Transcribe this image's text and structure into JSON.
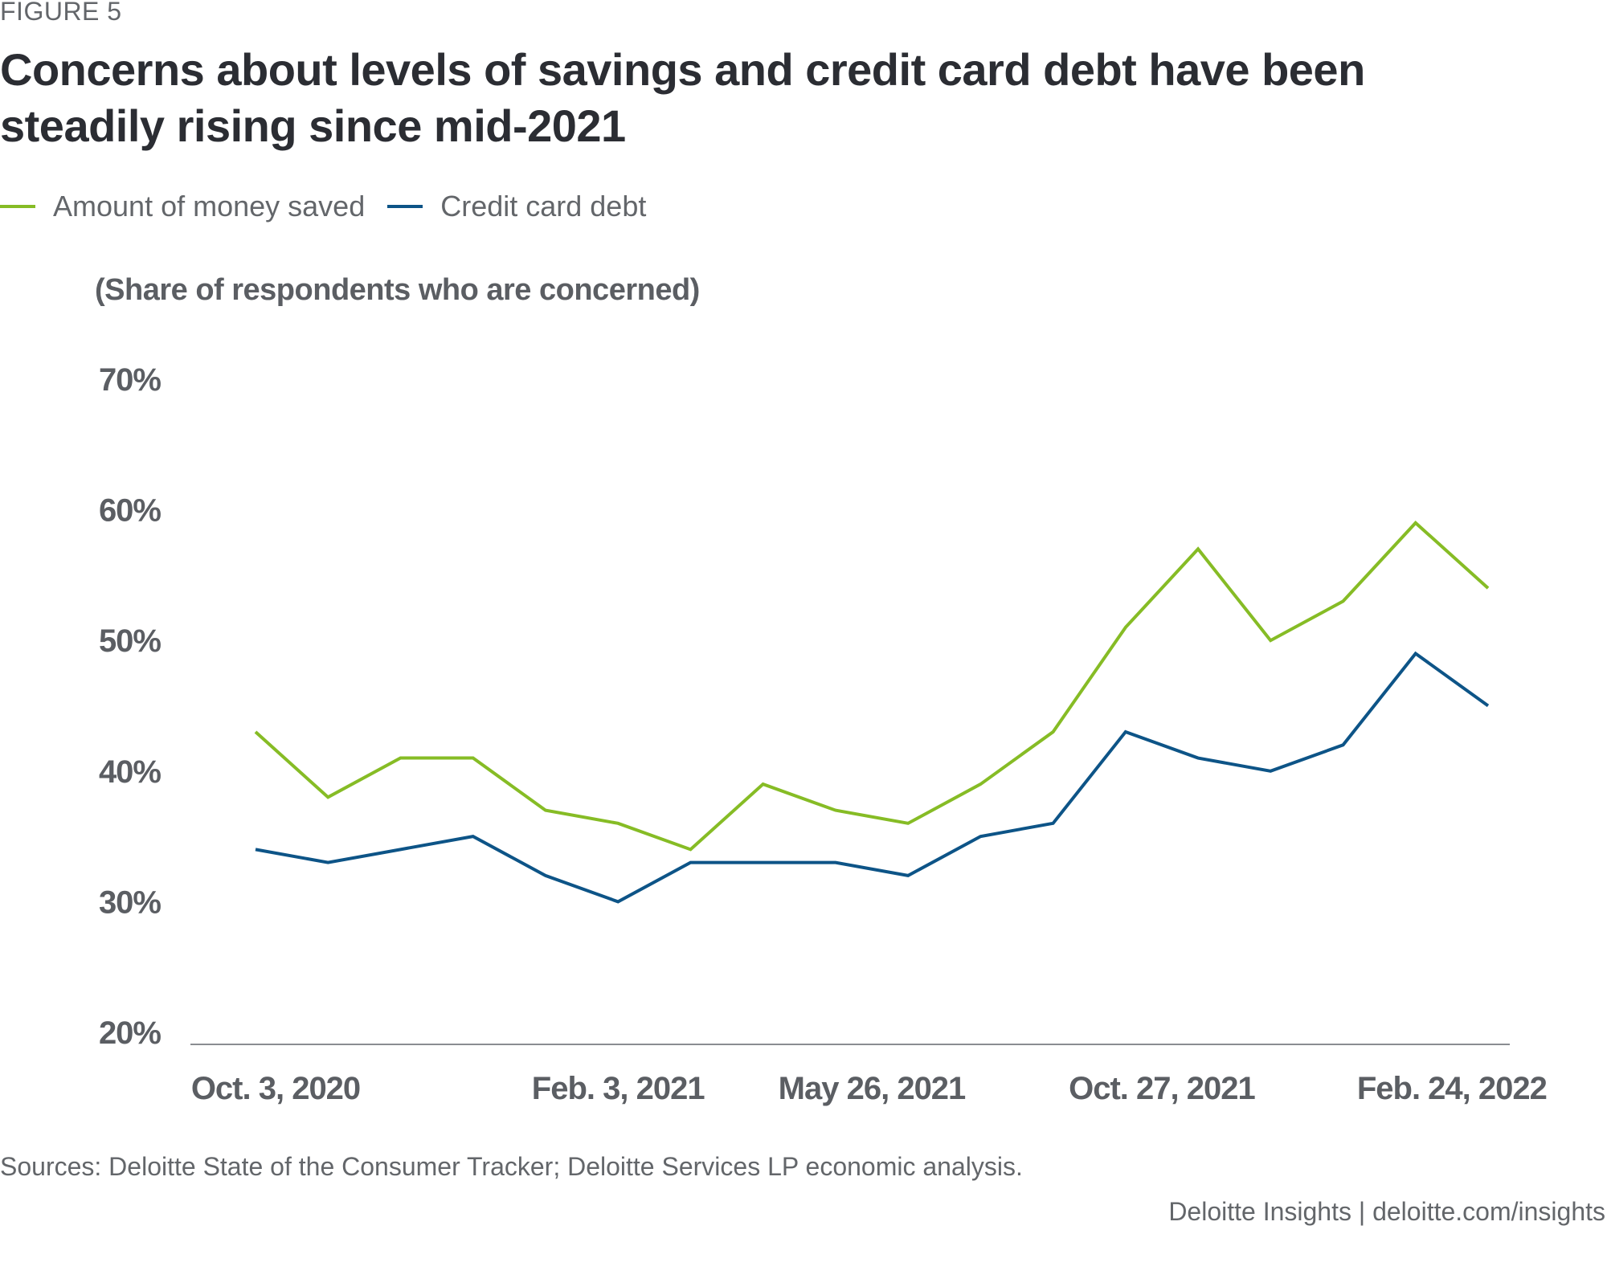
{
  "figure_label": "FIGURE 5",
  "title": "Concerns about levels of savings and credit card debt have been steadily rising since mid-2021",
  "legend": [
    {
      "name": "Amount of money saved",
      "color": "#86bc25"
    },
    {
      "name": "Credit card debt",
      "color": "#0d5487"
    }
  ],
  "source": "Sources: Deloitte State of the Consumer Tracker; Deloitte Services LP economic analysis.",
  "credit": "Deloitte Insights | deloitte.com/insights",
  "chart_data": {
    "type": "line",
    "title": "Concerns about levels of savings and credit card debt have been steadily rising since mid-2021",
    "ylabel": "(Share of respondents who are concerned)",
    "xlabel": "",
    "ylim": [
      20,
      70
    ],
    "yticks": [
      "70%",
      "60%",
      "50%",
      "40%",
      "30%",
      "20%"
    ],
    "ytick_values": [
      70,
      60,
      50,
      40,
      30,
      20
    ],
    "xtick_labels": [
      {
        "label": "Oct. 3, 2020",
        "index": 0
      },
      {
        "label": "Feb. 3, 2021",
        "index": 5
      },
      {
        "label": "May 26, 2021",
        "index": 8.5
      },
      {
        "label": "Oct. 27, 2021",
        "index": 12.5
      },
      {
        "label": "Feb. 24, 2022",
        "index": 16.5
      }
    ],
    "n_points": 18,
    "grid": false,
    "legend_position": "top-left",
    "series": [
      {
        "name": "Amount of money saved",
        "color": "#86bc25",
        "values": [
          43,
          38,
          41,
          41,
          37,
          36,
          34,
          39,
          37,
          36,
          39,
          43,
          51,
          57,
          50,
          53,
          59,
          54
        ]
      },
      {
        "name": "Credit card debt",
        "color": "#0d5487",
        "values": [
          34,
          33,
          34,
          35,
          32,
          30,
          33,
          33,
          33,
          32,
          35,
          36,
          43,
          41,
          40,
          42,
          49,
          45
        ]
      }
    ]
  }
}
